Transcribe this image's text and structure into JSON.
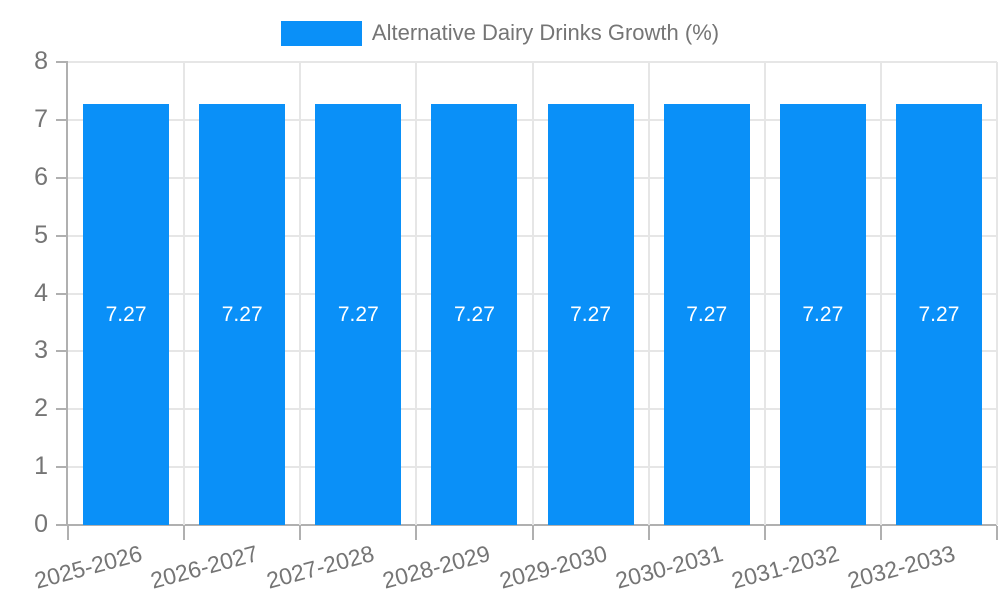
{
  "legend": {
    "label": "Alternative Dairy Drinks Growth (%)"
  },
  "colors": {
    "bar": "#0A90F8",
    "grid": "#E6E6E6",
    "axis": "#B0B0B0",
    "tick_text": "#757575",
    "bar_label_text": "#FFFFFF",
    "background": "#FFFFFF"
  },
  "chart_data": {
    "type": "bar",
    "title": "Alternative Dairy Drinks Growth (%)",
    "series": [
      {
        "name": "Alternative Dairy Drinks Growth (%)",
        "values": [
          7.27,
          7.27,
          7.27,
          7.27,
          7.27,
          7.27,
          7.27,
          7.27
        ]
      }
    ],
    "categories": [
      "2025-2026",
      "2026-2027",
      "2027-2028",
      "2028-2029",
      "2029-2030",
      "2030-2031",
      "2031-2032",
      "2032-2033"
    ],
    "data_labels": [
      "7.27",
      "7.27",
      "7.27",
      "7.27",
      "7.27",
      "7.27",
      "7.27",
      "7.27"
    ],
    "xlabel": "",
    "ylabel": "",
    "ylim": [
      0,
      8
    ],
    "yticks": [
      0,
      1,
      2,
      3,
      4,
      5,
      6,
      7,
      8
    ],
    "grid": true,
    "legend_position": "top",
    "x_tick_rotation_deg": -15
  }
}
